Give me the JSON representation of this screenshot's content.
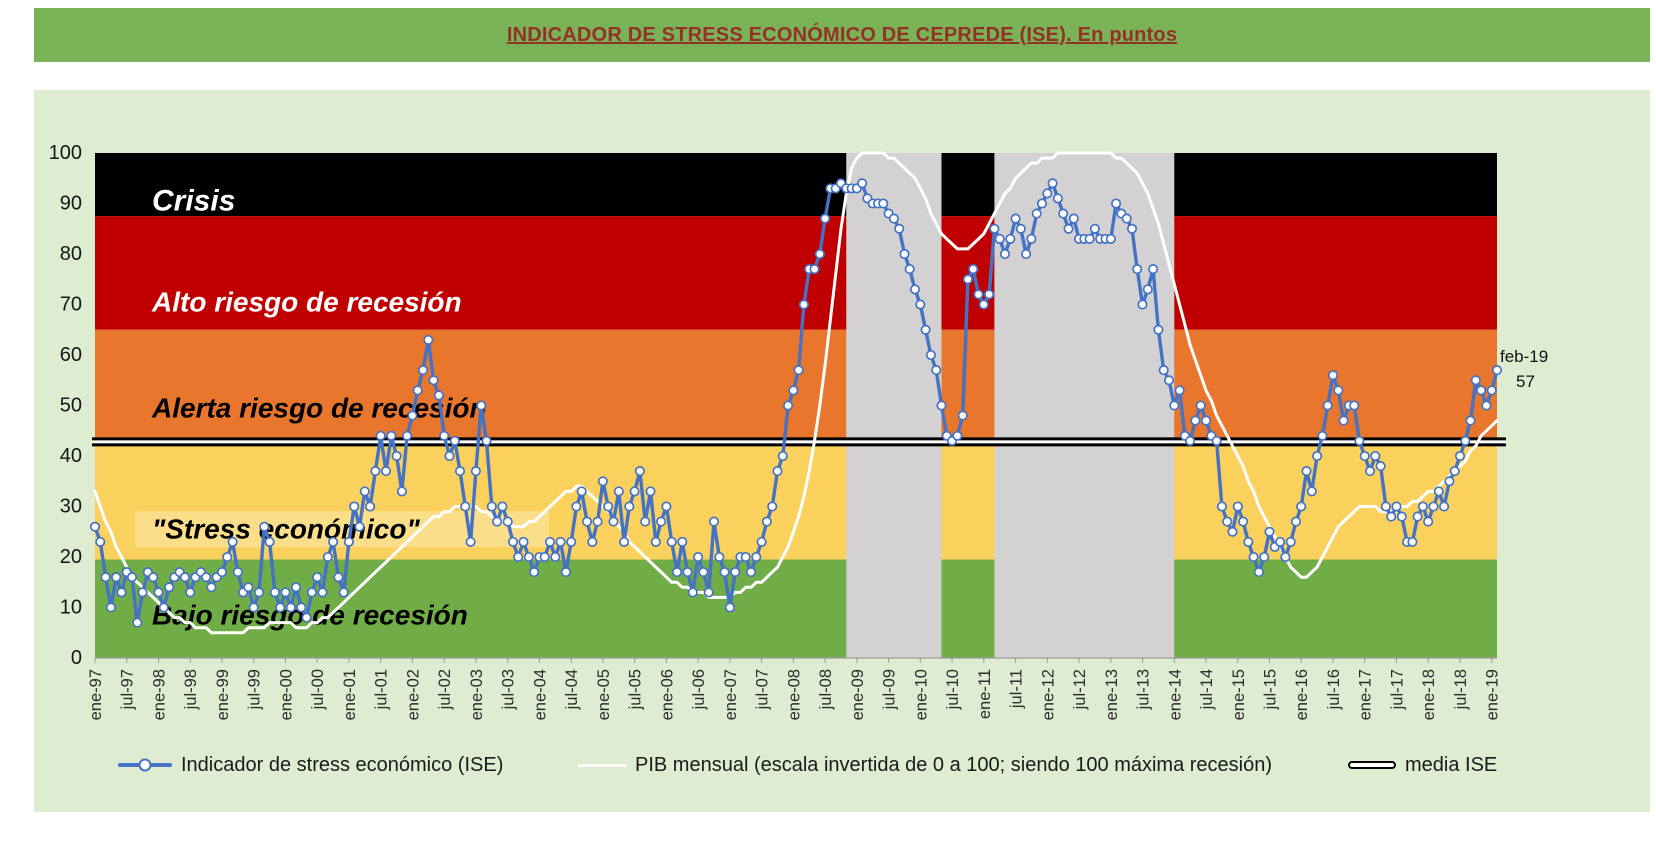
{
  "header": {
    "title": "INDICADOR DE STRESS ECONÓMICO DE CEPREDE (ISE). En puntos"
  },
  "chart_data": {
    "type": "line",
    "title": "INDICADOR DE STRESS ECONÓMICO DE CEPREDE (ISE). En puntos",
    "ylim": [
      0,
      100
    ],
    "y_ticks": [
      0,
      10,
      20,
      30,
      40,
      50,
      60,
      70,
      80,
      90,
      100
    ],
    "x_start_label": "ene-97",
    "x_end_label": "feb-19",
    "month_index_base": "ene-97 = 0, monthly",
    "x_tick_labels": [
      "ene-97",
      "jul-97",
      "ene-98",
      "jul-98",
      "ene-99",
      "jul-99",
      "ene-00",
      "jul-00",
      "ene-01",
      "jul-01",
      "ene-02",
      "jul-02",
      "ene-03",
      "jul-03",
      "ene-04",
      "jul-04",
      "ene-05",
      "jul-05",
      "ene-06",
      "jul-06",
      "ene-07",
      "jul-07",
      "ene-08",
      "jul-08",
      "ene-09",
      "jul-09",
      "ene-10",
      "jul-10",
      "ene-11",
      "jul-11",
      "ene-12",
      "jul-12",
      "ene-13",
      "jul-13",
      "ene-14",
      "jul-14",
      "ene-15",
      "jul-15",
      "ene-16",
      "jul-16",
      "ene-17",
      "jul-17",
      "ene-18",
      "jul-18",
      "ene-19"
    ],
    "zones": [
      {
        "id": "crisis",
        "label": "Crisis",
        "from": 87.5,
        "to": 100,
        "color": "#000000",
        "text_color": "#ffffff",
        "label_value": 90.5,
        "label_size": 30
      },
      {
        "id": "alto-riesgo-de-recesion",
        "label": "Alto riesgo de recesión",
        "from": 65,
        "to": 87.5,
        "color": "#c00000",
        "text_color": "#ffffff",
        "label_value": 70.5,
        "label_size": 28
      },
      {
        "id": "alerta-riesgo-de-recesion",
        "label": "Alerta riesgo de recesión",
        "from": 42,
        "to": 65,
        "color": "#e8762d",
        "text_color": "#000000",
        "label_value": 49.5,
        "label_size": 28
      },
      {
        "id": "stress-economico",
        "label": "\"Stress económico\"",
        "from": 19.5,
        "to": 42,
        "color": "#fad15c",
        "text_color": "#000000",
        "label_value": 25.5,
        "label_size": 28,
        "highlight": true
      },
      {
        "id": "bajo-riesgo-de-recesion",
        "label": "Bajo riesgo de recesión",
        "from": 0,
        "to": 19.5,
        "color": "#70ad47",
        "text_color": "#000000",
        "label_value": 8.5,
        "label_size": 28
      }
    ],
    "recession_bands_color": "#d3d1d1",
    "recession_bands": [
      {
        "start_month_index": 142,
        "end_month_index": 160
      },
      {
        "start_month_index": 170,
        "end_month_index": 204
      }
    ],
    "media": {
      "name": "media ISE",
      "value": 42.8
    },
    "annotation": {
      "label": "feb-19",
      "value": "57"
    },
    "series": [
      {
        "name": "Indicador de stress económico (ISE)",
        "color": "#4472c4",
        "marker": "circle",
        "values": [
          26,
          23,
          16,
          10,
          16,
          13,
          17,
          16,
          7,
          13,
          17,
          16,
          13,
          10,
          14,
          16,
          17,
          16,
          13,
          16,
          17,
          16,
          14,
          16,
          17,
          20,
          23,
          17,
          13,
          14,
          10,
          13,
          26,
          23,
          13,
          10,
          13,
          10,
          14,
          10,
          8,
          13,
          16,
          13,
          20,
          23,
          16,
          13,
          23,
          30,
          26,
          33,
          30,
          37,
          44,
          37,
          44,
          40,
          33,
          44,
          48,
          53,
          57,
          63,
          55,
          52,
          44,
          40,
          43,
          37,
          30,
          23,
          37,
          50,
          43,
          30,
          27,
          30,
          27,
          23,
          20,
          23,
          20,
          17,
          20,
          20,
          23,
          20,
          23,
          17,
          23,
          30,
          33,
          27,
          23,
          27,
          35,
          30,
          27,
          33,
          23,
          30,
          33,
          37,
          27,
          33,
          23,
          27,
          30,
          23,
          17,
          23,
          17,
          13,
          20,
          17,
          13,
          27,
          20,
          17,
          10,
          17,
          20,
          20,
          17,
          20,
          23,
          27,
          30,
          37,
          40,
          50,
          53,
          57,
          70,
          77,
          77,
          80,
          87,
          93,
          93,
          94,
          93,
          93,
          93,
          94,
          91,
          90,
          90,
          90,
          88,
          87,
          85,
          80,
          77,
          73,
          70,
          65,
          60,
          57,
          50,
          44,
          43,
          44,
          48,
          75,
          77,
          72,
          70,
          72,
          85,
          83,
          80,
          83,
          87,
          85,
          80,
          83,
          88,
          90,
          92,
          94,
          91,
          88,
          85,
          87,
          83,
          83,
          83,
          85,
          83,
          83,
          83,
          90,
          88,
          87,
          85,
          77,
          70,
          73,
          77,
          65,
          57,
          55,
          50,
          53,
          44,
          43,
          47,
          50,
          47,
          44,
          43,
          30,
          27,
          25,
          30,
          27,
          23,
          20,
          17,
          20,
          25,
          22,
          23,
          20,
          23,
          27,
          30,
          37,
          33,
          40,
          44,
          50,
          56,
          53,
          47,
          50,
          50,
          43,
          40,
          37,
          40,
          38,
          30,
          28,
          30,
          28,
          23,
          23,
          28,
          30,
          27,
          30,
          33,
          30,
          35,
          37,
          40,
          43,
          47,
          55,
          53,
          50,
          53,
          57
        ]
      },
      {
        "name": "PIB mensual (escala invertida de 0 a 100; siendo 100 máxima recesión)",
        "color": "#ffffff",
        "values": [
          33,
          30,
          27,
          25,
          22,
          20,
          18,
          16,
          15,
          14,
          13,
          12,
          11,
          10,
          9,
          8,
          8,
          7,
          7,
          6,
          6,
          6,
          5,
          5,
          5,
          5,
          5,
          5,
          5,
          6,
          6,
          6,
          6,
          7,
          7,
          7,
          7,
          7,
          6,
          6,
          6,
          7,
          7,
          8,
          8,
          9,
          10,
          11,
          12,
          13,
          14,
          15,
          16,
          17,
          18,
          19,
          20,
          21,
          22,
          23,
          24,
          25,
          26,
          27,
          28,
          28,
          29,
          29,
          30,
          30,
          30,
          30,
          30,
          29,
          29,
          28,
          28,
          27,
          27,
          26,
          26,
          26,
          27,
          27,
          28,
          29,
          30,
          31,
          32,
          33,
          33,
          34,
          34,
          33,
          32,
          31,
          30,
          29,
          28,
          26,
          25,
          23,
          22,
          21,
          20,
          19,
          18,
          17,
          16,
          15,
          15,
          14,
          14,
          13,
          13,
          13,
          12,
          12,
          12,
          12,
          12,
          13,
          13,
          14,
          14,
          15,
          15,
          16,
          17,
          18,
          20,
          22,
          25,
          28,
          32,
          37,
          43,
          50,
          58,
          67,
          76,
          85,
          92,
          97,
          99,
          100,
          100,
          100,
          100,
          100,
          99,
          99,
          98,
          97,
          96,
          95,
          93,
          91,
          88,
          86,
          84,
          83,
          82,
          81,
          81,
          81,
          82,
          83,
          84,
          86,
          88,
          90,
          92,
          93,
          95,
          96,
          97,
          98,
          98,
          99,
          99,
          99,
          100,
          100,
          100,
          100,
          100,
          100,
          100,
          100,
          100,
          100,
          100,
          99,
          99,
          98,
          97,
          96,
          94,
          92,
          89,
          86,
          82,
          78,
          74,
          70,
          66,
          62,
          59,
          56,
          53,
          51,
          48,
          46,
          44,
          42,
          40,
          38,
          35,
          33,
          30,
          28,
          26,
          24,
          22,
          20,
          18,
          17,
          16,
          16,
          17,
          18,
          20,
          22,
          24,
          26,
          27,
          28,
          29,
          30,
          30,
          30,
          30,
          29,
          29,
          29,
          29,
          30,
          30,
          31,
          31,
          32,
          33,
          33,
          34,
          35,
          36,
          37,
          38,
          39,
          41,
          42,
          44,
          45,
          46,
          47
        ]
      }
    ]
  }
}
